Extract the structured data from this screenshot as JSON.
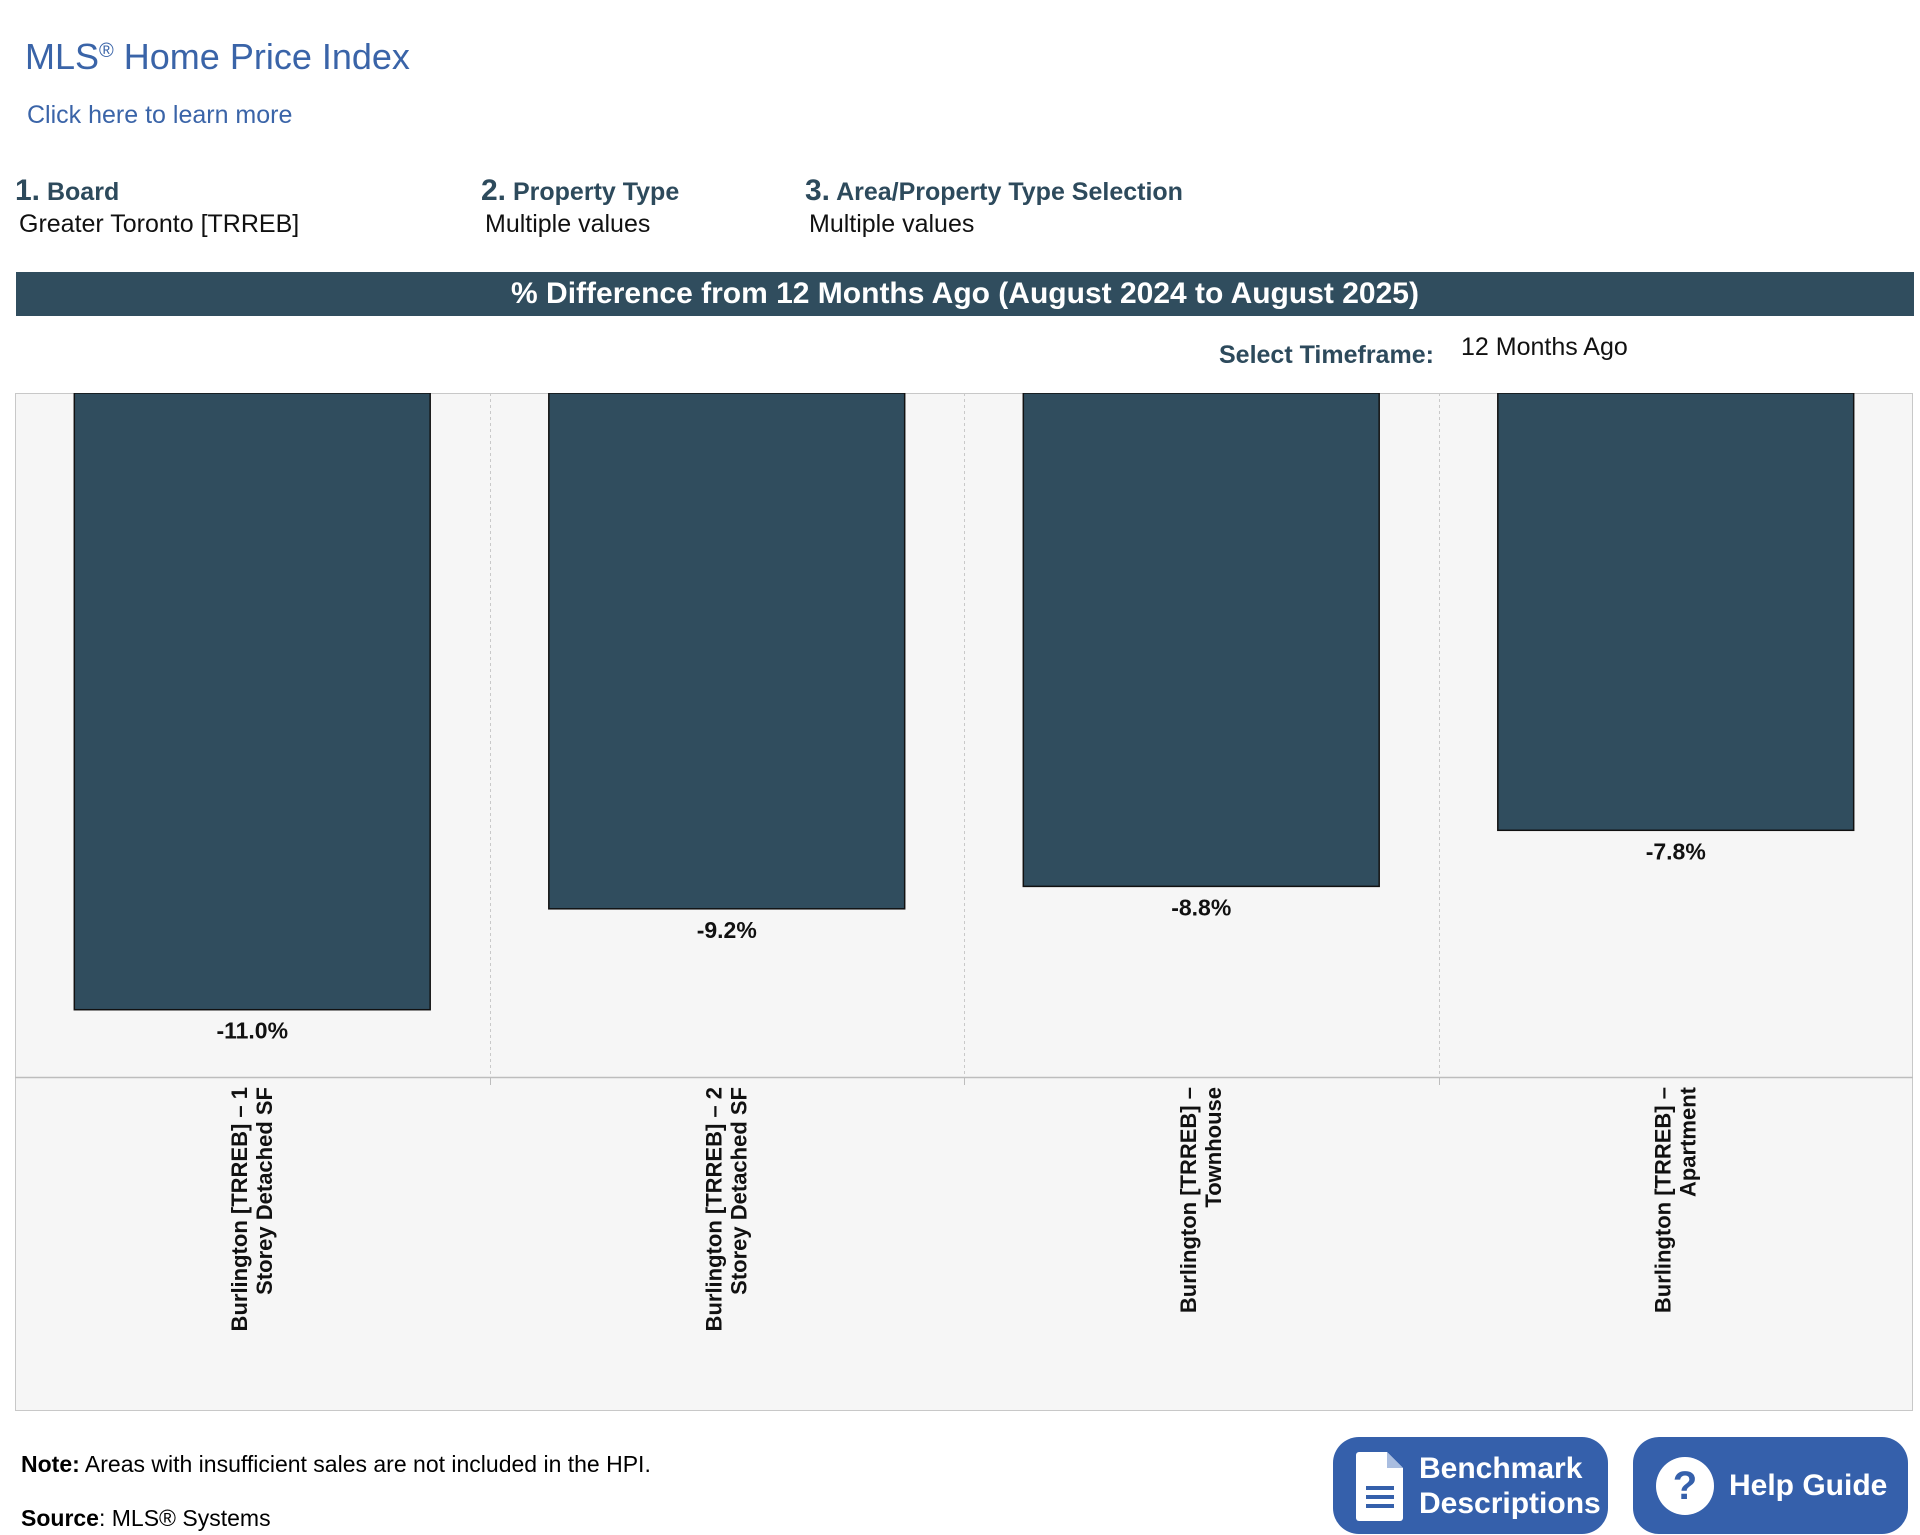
{
  "header": {
    "title_main": "MLS",
    "title_reg": "®",
    "title_rest": " Home Price Index",
    "learn_more": "Click here to learn more"
  },
  "filters": [
    {
      "num": "1.",
      "label": "Board",
      "value": "Greater Toronto [TRREB]"
    },
    {
      "num": "2.",
      "label": "Property Type",
      "value": "Multiple values"
    },
    {
      "num": "3.",
      "label": "Area/Property Type Selection",
      "value": "Multiple values"
    }
  ],
  "band_title": "% Difference from 12 Months Ago (August 2024 to August 2025)",
  "timeframe": {
    "label": "Select Timeframe:",
    "value": "12 Months Ago"
  },
  "chart_data": {
    "type": "bar",
    "title": "% Difference from 12 Months Ago (August 2024 to August 2025)",
    "categories": [
      [
        "Burlington [TRREB] – 1",
        "Storey Detached SF"
      ],
      [
        "Burlington [TRREB] – 2",
        "Storey Detached SF"
      ],
      [
        "Burlington [TRREB] –",
        "Townhouse"
      ],
      [
        "Burlington [TRREB] –",
        "Apartment"
      ]
    ],
    "values": [
      -11.0,
      -9.2,
      -8.8,
      -7.8
    ],
    "data_labels": [
      "-11.0%",
      "-9.2%",
      "-8.8%",
      "-7.8%"
    ],
    "ylim": [
      -12.2,
      0
    ],
    "bar_color": "#304d5e",
    "grid": false,
    "legend": "none"
  },
  "footer": {
    "note_label": "Note:",
    "note_text": " Areas with insufficient sales are not included in the HPI.",
    "source_label": "Source",
    "source_text": ": MLS® Systems"
  },
  "buttons": {
    "benchmark_line1": "Benchmark",
    "benchmark_line2": "Descriptions",
    "help": "Help Guide",
    "benchmark_icon": "document-icon",
    "help_icon": "question-circle-icon"
  }
}
